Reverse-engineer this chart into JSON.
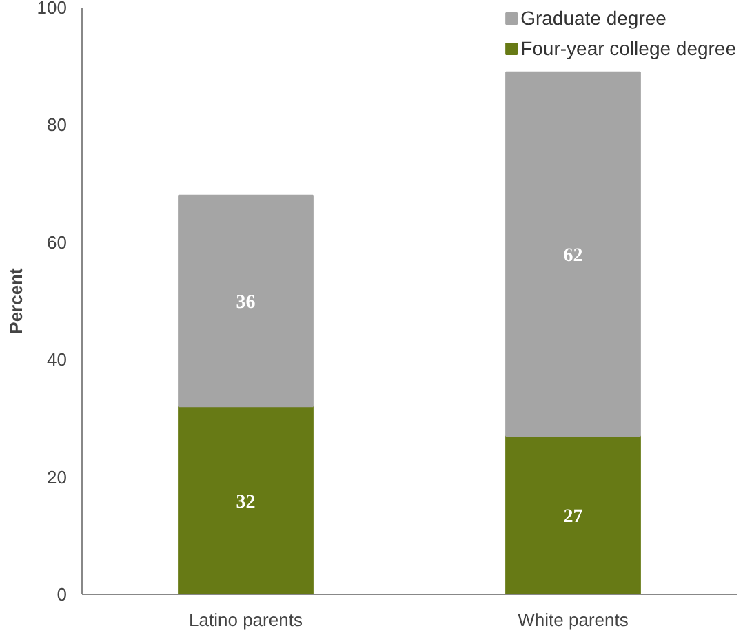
{
  "chart_data": {
    "type": "bar",
    "stacked": true,
    "ylabel": "Percent",
    "categories": [
      "Latino parents",
      "White parents"
    ],
    "series": [
      {
        "name": "Four-year college degree",
        "color": "#677a15",
        "values": [
          32,
          27
        ]
      },
      {
        "name": "Graduate degree",
        "color": "#a5a5a5",
        "values": [
          36,
          62
        ]
      }
    ],
    "ylim": [
      0,
      100
    ],
    "yticks": [
      0,
      20,
      40,
      60,
      80,
      100
    ],
    "grid": false,
    "legend": "top right",
    "data_labels": true
  }
}
